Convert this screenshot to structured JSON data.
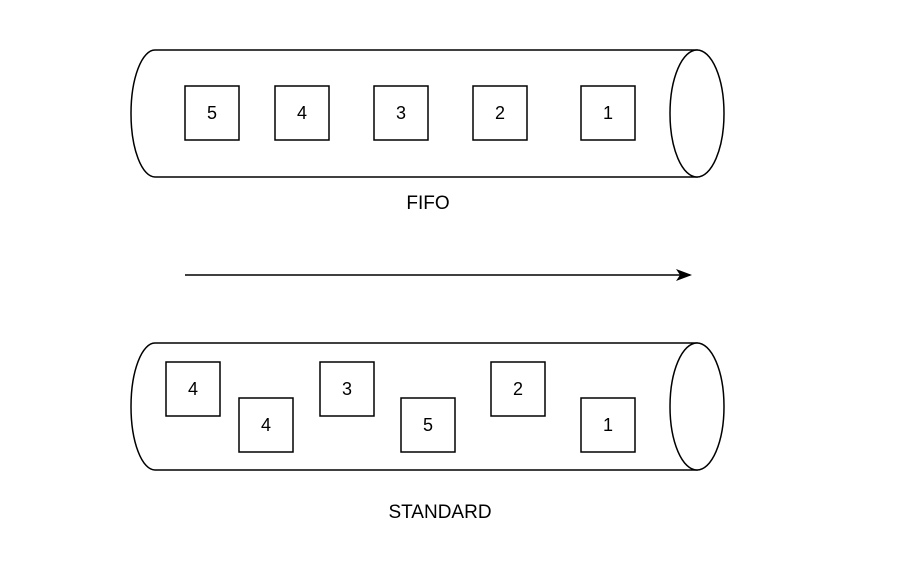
{
  "queues": [
    {
      "name": "fifo",
      "label": "FIFO",
      "messages": [
        "5",
        "4",
        "3",
        "2",
        "1"
      ]
    },
    {
      "name": "standard",
      "label": "STANDARD",
      "messages": [
        "4",
        "4",
        "3",
        "5",
        "2",
        "1"
      ]
    }
  ],
  "arrow": {
    "direction": "right"
  },
  "colors": {
    "stroke": "#000000",
    "fill": "#ffffff"
  }
}
